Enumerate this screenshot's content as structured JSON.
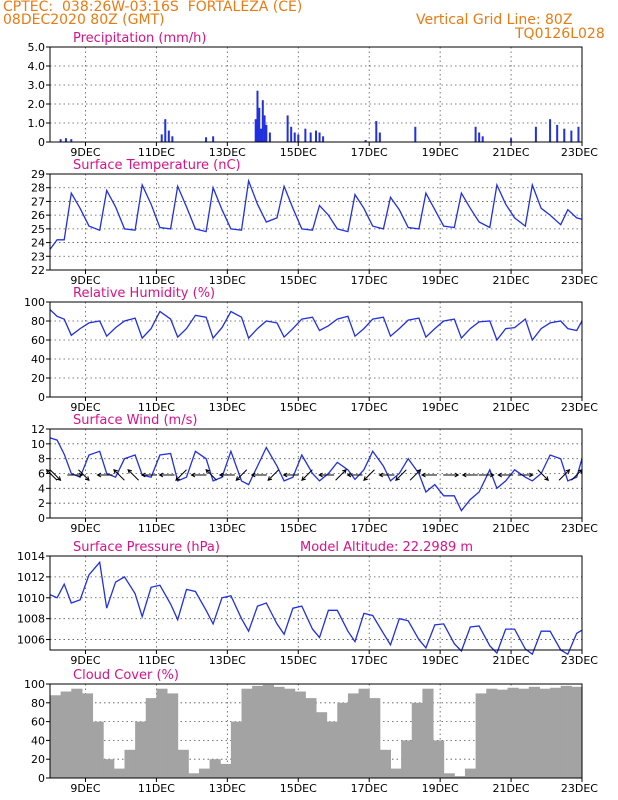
{
  "header": {
    "station": "CPTEC:  038:26W-03:16S  FORTALEZA (CE)",
    "run": "08DEC2020 80Z (GMT)",
    "grid_note": "Vertical Grid Line: 80Z",
    "code": "TQ0126L028"
  },
  "colors": {
    "header": "#e87b13",
    "title": "#d6128a",
    "line": "#2130e0",
    "cloud": "#a3a3a3",
    "axis": "#000000"
  },
  "x_axis": {
    "start_day": 8,
    "end_day": 23,
    "tick_days": [
      9,
      11,
      13,
      15,
      17,
      19,
      21,
      23
    ],
    "tick_labels": [
      "9DEC",
      "11DEC",
      "13DEC",
      "15DEC",
      "17DEC",
      "19DEC",
      "21DEC",
      "23DEC"
    ]
  },
  "model_altitude": "Model Altitude: 22.2989 m",
  "chart_data": [
    {
      "type": "bar",
      "title": "Precipitation (mm/h)",
      "ylim": [
        0,
        5
      ],
      "yticks": [
        0,
        1,
        2,
        3,
        4,
        5
      ],
      "x": [
        8.3,
        8.45,
        8.6,
        11.15,
        11.25,
        11.35,
        11.45,
        12.4,
        12.6,
        13.8,
        13.85,
        13.9,
        13.95,
        14.0,
        14.05,
        14.1,
        14.2,
        14.7,
        14.8,
        14.9,
        15.0,
        15.2,
        15.35,
        15.5,
        15.6,
        15.7,
        16.9,
        17.2,
        17.3,
        18.3,
        20.0,
        20.1,
        20.2,
        21.0,
        21.7,
        22.1,
        22.3,
        22.5,
        22.7,
        22.9
      ],
      "values": [
        0.15,
        0.2,
        0.15,
        0.4,
        1.2,
        0.6,
        0.3,
        0.25,
        0.3,
        1.2,
        2.7,
        1.8,
        0.7,
        2.2,
        1.4,
        0.9,
        0.5,
        1.4,
        0.8,
        0.5,
        0.4,
        0.7,
        0.5,
        0.6,
        0.5,
        0.3,
        0.1,
        1.1,
        0.5,
        0.8,
        0.8,
        0.5,
        0.3,
        0.2,
        0.8,
        1.2,
        0.9,
        0.7,
        0.6,
        0.8
      ]
    },
    {
      "type": "line",
      "title": "Surface Temperature (nC)",
      "ylim": [
        22,
        29
      ],
      "yticks": [
        22,
        23,
        24,
        25,
        26,
        27,
        28,
        29
      ],
      "x": [
        8.0,
        8.2,
        8.4,
        8.6,
        8.85,
        9.1,
        9.4,
        9.6,
        9.85,
        10.1,
        10.4,
        10.6,
        10.85,
        11.1,
        11.4,
        11.6,
        11.85,
        12.1,
        12.4,
        12.6,
        12.85,
        13.1,
        13.4,
        13.6,
        13.85,
        14.1,
        14.4,
        14.6,
        14.85,
        15.1,
        15.4,
        15.6,
        15.85,
        16.1,
        16.4,
        16.6,
        16.85,
        17.1,
        17.4,
        17.6,
        17.85,
        18.1,
        18.4,
        18.6,
        18.85,
        19.1,
        19.4,
        19.6,
        19.85,
        20.1,
        20.4,
        20.6,
        20.85,
        21.1,
        21.4,
        21.6,
        21.85,
        22.1,
        22.4,
        22.6,
        22.85,
        23.0
      ],
      "values": [
        23.5,
        24.2,
        24.2,
        27.6,
        26.5,
        25.2,
        24.9,
        27.8,
        26.6,
        25.0,
        24.9,
        28.2,
        26.8,
        25.1,
        25.0,
        28.1,
        26.6,
        25.0,
        24.8,
        28.0,
        26.4,
        25.0,
        24.9,
        28.5,
        26.8,
        25.5,
        25.8,
        28.1,
        26.5,
        25.0,
        24.9,
        26.7,
        26.0,
        25.0,
        24.8,
        27.5,
        26.5,
        25.2,
        25.0,
        27.3,
        26.4,
        25.1,
        25.0,
        27.6,
        26.4,
        25.2,
        25.1,
        27.6,
        26.5,
        25.5,
        25.1,
        28.2,
        26.8,
        25.8,
        25.2,
        28.2,
        26.5,
        26.0,
        25.3,
        26.4,
        25.8,
        25.7
      ]
    },
    {
      "type": "line",
      "title": "Relative Humidity (%)",
      "ylim": [
        0,
        100
      ],
      "yticks": [
        0,
        20,
        40,
        60,
        80,
        100
      ],
      "x": [
        8.0,
        8.2,
        8.4,
        8.6,
        8.85,
        9.1,
        9.4,
        9.6,
        9.85,
        10.1,
        10.4,
        10.6,
        10.85,
        11.1,
        11.4,
        11.6,
        11.85,
        12.1,
        12.4,
        12.6,
        12.85,
        13.1,
        13.4,
        13.6,
        13.85,
        14.1,
        14.4,
        14.6,
        14.85,
        15.1,
        15.4,
        15.6,
        15.85,
        16.1,
        16.4,
        16.6,
        16.85,
        17.1,
        17.4,
        17.6,
        17.85,
        18.1,
        18.4,
        18.6,
        18.85,
        19.1,
        19.4,
        19.6,
        19.85,
        20.1,
        20.4,
        20.6,
        20.85,
        21.1,
        21.4,
        21.6,
        21.85,
        22.1,
        22.4,
        22.6,
        22.85,
        23.0
      ],
      "values": [
        92,
        85,
        82,
        65,
        72,
        78,
        80,
        64,
        73,
        80,
        83,
        62,
        72,
        90,
        82,
        63,
        72,
        86,
        84,
        62,
        73,
        90,
        84,
        62,
        72,
        80,
        78,
        63,
        72,
        82,
        84,
        70,
        75,
        82,
        85,
        64,
        72,
        82,
        84,
        64,
        72,
        81,
        83,
        63,
        72,
        80,
        82,
        62,
        72,
        79,
        80,
        60,
        72,
        73,
        82,
        60,
        72,
        78,
        80,
        72,
        70,
        80
      ]
    },
    {
      "type": "line",
      "title": "Surface Wind (m/s)",
      "ylim": [
        0,
        12
      ],
      "yticks": [
        0,
        2,
        4,
        6,
        8,
        10,
        12
      ],
      "x": [
        8.0,
        8.2,
        8.4,
        8.6,
        8.85,
        9.1,
        9.4,
        9.6,
        9.85,
        10.1,
        10.4,
        10.6,
        10.85,
        11.1,
        11.4,
        11.6,
        11.85,
        12.1,
        12.4,
        12.6,
        12.85,
        13.1,
        13.4,
        13.6,
        13.85,
        14.1,
        14.4,
        14.6,
        14.85,
        15.1,
        15.4,
        15.6,
        15.85,
        16.1,
        16.4,
        16.6,
        16.85,
        17.1,
        17.4,
        17.6,
        17.85,
        18.1,
        18.4,
        18.6,
        18.85,
        19.1,
        19.4,
        19.6,
        19.85,
        20.1,
        20.4,
        20.6,
        20.85,
        21.1,
        21.4,
        21.6,
        21.85,
        22.1,
        22.4,
        22.6,
        22.85,
        23.0
      ],
      "values": [
        10.8,
        10.5,
        8.6,
        6.0,
        5.5,
        8.5,
        9.0,
        6.0,
        5.5,
        8.0,
        8.5,
        5.8,
        5.5,
        8.5,
        8.7,
        5.0,
        5.5,
        9.0,
        8.0,
        5.0,
        5.5,
        9.0,
        5.0,
        4.5,
        7.0,
        9.5,
        7.0,
        5.0,
        5.5,
        8.5,
        6.0,
        5.0,
        6.0,
        7.5,
        6.5,
        5.2,
        6.5,
        9.0,
        7.0,
        5.0,
        6.0,
        8.0,
        6.0,
        3.5,
        4.5,
        3.0,
        3.0,
        1.0,
        2.5,
        3.5,
        6.5,
        4.0,
        5.0,
        6.5,
        5.5,
        5.0,
        6.0,
        8.5,
        8.0,
        5.0,
        5.5,
        8.0
      ],
      "arrows": [
        {
          "x": 8.05,
          "dir": "NW"
        },
        {
          "x": 8.15,
          "dir": "SE"
        },
        {
          "x": 8.7,
          "dir": "E"
        },
        {
          "x": 8.95,
          "dir": "SE"
        },
        {
          "x": 9.55,
          "dir": "W"
        },
        {
          "x": 9.95,
          "dir": "NW"
        },
        {
          "x": 10.35,
          "dir": "NW"
        },
        {
          "x": 10.8,
          "dir": "W"
        },
        {
          "x": 11.3,
          "dir": "W"
        },
        {
          "x": 11.7,
          "dir": "SW"
        },
        {
          "x": 12.2,
          "dir": "W"
        },
        {
          "x": 12.55,
          "dir": "NW"
        },
        {
          "x": 13.0,
          "dir": "W"
        },
        {
          "x": 13.4,
          "dir": "SW"
        },
        {
          "x": 13.9,
          "dir": "W"
        },
        {
          "x": 14.3,
          "dir": "SW"
        },
        {
          "x": 14.8,
          "dir": "W"
        },
        {
          "x": 15.25,
          "dir": "SW"
        },
        {
          "x": 15.8,
          "dir": "W"
        },
        {
          "x": 16.2,
          "dir": "NE"
        },
        {
          "x": 16.6,
          "dir": "W"
        },
        {
          "x": 17.0,
          "dir": "SW"
        },
        {
          "x": 17.5,
          "dir": "W"
        },
        {
          "x": 17.9,
          "dir": "SW"
        },
        {
          "x": 18.3,
          "dir": "NE"
        },
        {
          "x": 18.7,
          "dir": "W"
        },
        {
          "x": 19.3,
          "dir": "E"
        },
        {
          "x": 19.85,
          "dir": "W"
        },
        {
          "x": 20.3,
          "dir": "E"
        },
        {
          "x": 20.85,
          "dir": "W"
        },
        {
          "x": 21.4,
          "dir": "E"
        },
        {
          "x": 21.9,
          "dir": "SE"
        },
        {
          "x": 22.5,
          "dir": "NE"
        },
        {
          "x": 22.85,
          "dir": "NE"
        }
      ]
    },
    {
      "type": "line",
      "title": "Surface Pressure (hPa)",
      "ylim": [
        1005,
        1014
      ],
      "yticks": [
        1006,
        1008,
        1010,
        1012,
        1014
      ],
      "x": [
        8.0,
        8.2,
        8.4,
        8.6,
        8.85,
        9.1,
        9.4,
        9.6,
        9.85,
        10.1,
        10.4,
        10.6,
        10.85,
        11.1,
        11.4,
        11.6,
        11.85,
        12.1,
        12.4,
        12.6,
        12.85,
        13.1,
        13.4,
        13.6,
        13.85,
        14.1,
        14.4,
        14.6,
        14.85,
        15.1,
        15.4,
        15.6,
        15.85,
        16.1,
        16.4,
        16.6,
        16.85,
        17.1,
        17.4,
        17.6,
        17.85,
        18.1,
        18.4,
        18.6,
        18.85,
        19.1,
        19.4,
        19.6,
        19.85,
        20.1,
        20.4,
        20.6,
        20.85,
        21.1,
        21.4,
        21.6,
        21.85,
        22.1,
        22.4,
        22.6,
        22.85,
        23.0
      ],
      "values": [
        1010.3,
        1010.0,
        1011.3,
        1009.5,
        1009.8,
        1012.2,
        1013.4,
        1009.0,
        1011.5,
        1012.0,
        1010.4,
        1008.2,
        1011.0,
        1011.2,
        1009.4,
        1007.9,
        1010.8,
        1010.6,
        1008.8,
        1007.5,
        1010.0,
        1010.2,
        1008.0,
        1006.8,
        1009.2,
        1009.5,
        1007.5,
        1006.5,
        1009.0,
        1009.2,
        1007.0,
        1006.2,
        1008.8,
        1008.8,
        1006.8,
        1005.8,
        1008.5,
        1008.3,
        1006.6,
        1005.5,
        1008.0,
        1007.8,
        1006.0,
        1005.2,
        1007.4,
        1007.5,
        1005.6,
        1004.9,
        1007.2,
        1007.3,
        1005.4,
        1004.7,
        1007.0,
        1007.0,
        1005.1,
        1004.6,
        1006.8,
        1006.8,
        1005.0,
        1004.6,
        1006.6,
        1006.9
      ]
    },
    {
      "type": "bar",
      "title": "Cloud Cover (%)",
      "ylim": [
        0,
        100
      ],
      "yticks": [
        0,
        20,
        40,
        60,
        80,
        100
      ],
      "x": [
        8.0,
        8.3,
        8.6,
        8.9,
        9.2,
        9.5,
        9.8,
        10.1,
        10.4,
        10.7,
        11.0,
        11.3,
        11.6,
        11.9,
        12.2,
        12.5,
        12.8,
        13.1,
        13.4,
        13.7,
        14.0,
        14.3,
        14.6,
        14.9,
        15.2,
        15.5,
        15.8,
        16.1,
        16.4,
        16.7,
        17.0,
        17.3,
        17.6,
        17.9,
        18.2,
        18.5,
        18.8,
        19.1,
        19.4,
        19.7,
        20.0,
        20.3,
        20.6,
        20.9,
        21.2,
        21.5,
        21.8,
        22.1,
        22.4,
        22.7
      ],
      "values": [
        88,
        92,
        95,
        90,
        60,
        20,
        10,
        30,
        60,
        85,
        95,
        90,
        30,
        5,
        10,
        20,
        15,
        60,
        95,
        98,
        99,
        97,
        95,
        92,
        85,
        70,
        60,
        80,
        90,
        95,
        85,
        30,
        10,
        40,
        80,
        95,
        40,
        5,
        2,
        10,
        90,
        95,
        94,
        96,
        95,
        97,
        95,
        96,
        98,
        97
      ]
    }
  ]
}
